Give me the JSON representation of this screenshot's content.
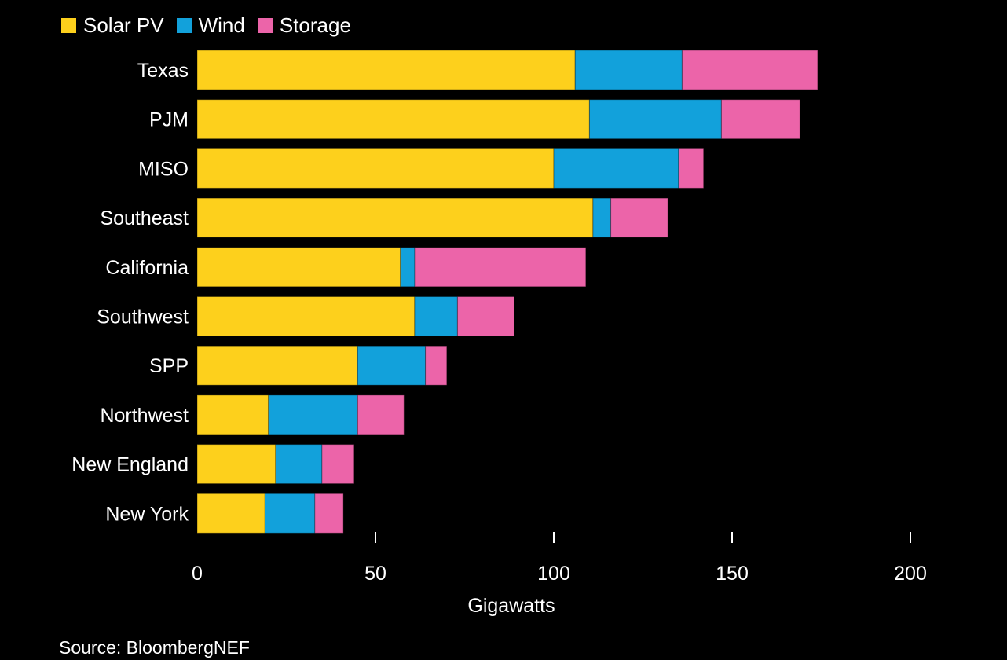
{
  "chart_data": {
    "type": "bar",
    "orientation": "horizontal",
    "stacked": true,
    "categories": [
      "Texas",
      "PJM",
      "MISO",
      "Southeast",
      "California",
      "Southwest",
      "SPP",
      "Northwest",
      "New England",
      "New York"
    ],
    "series": [
      {
        "name": "Solar PV",
        "color": "#fdd01c",
        "values": [
          106,
          110,
          100,
          111,
          57,
          61,
          45,
          20,
          22,
          19
        ]
      },
      {
        "name": "Wind",
        "color": "#12a1db",
        "values": [
          30,
          37,
          35,
          5,
          4,
          12,
          19,
          25,
          13,
          14
        ]
      },
      {
        "name": "Storage",
        "color": "#ec64a9",
        "values": [
          38,
          22,
          7,
          16,
          48,
          16,
          6,
          13,
          9,
          8
        ]
      }
    ],
    "xlabel": "Gigawatts",
    "xlim": [
      0,
      200
    ],
    "xticks": [
      "0",
      "50",
      "100",
      "150",
      "200"
    ],
    "legend_position": "top-left",
    "grid": false
  },
  "source": "Source: BloombergNEF"
}
